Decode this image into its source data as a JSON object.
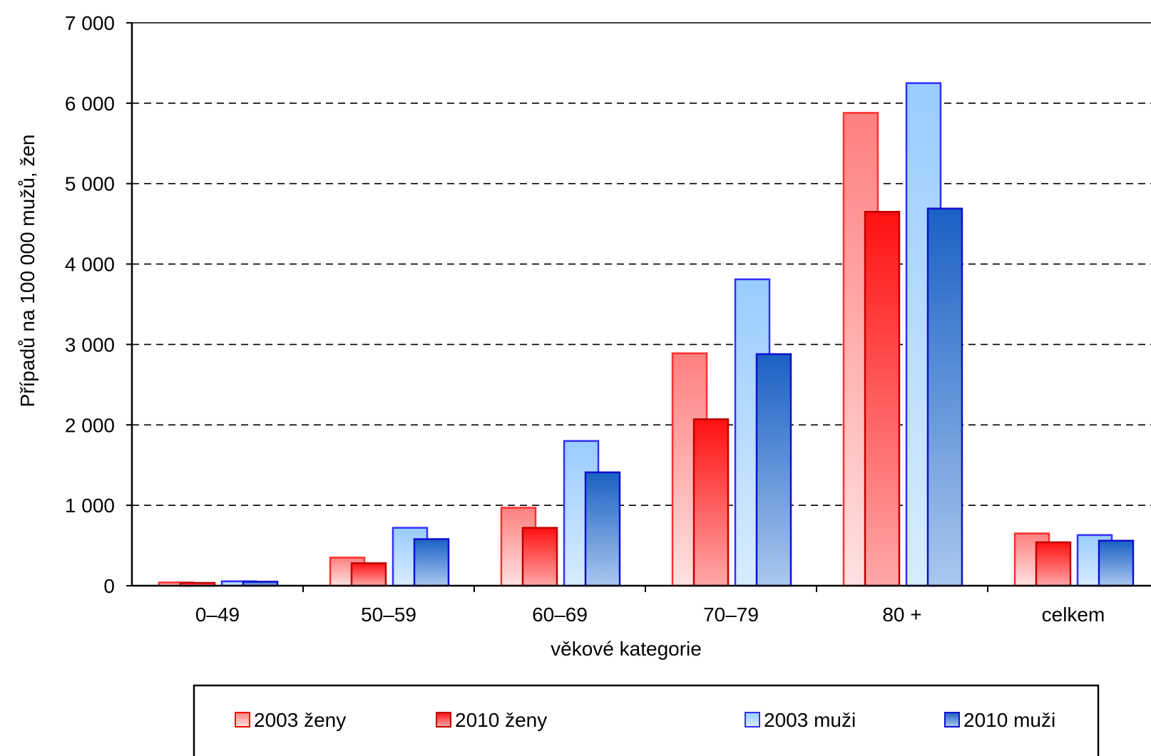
{
  "chart_data": {
    "type": "bar",
    "xlabel": "věkové kategorie",
    "ylabel": "Případů na 100 000 mužů, žen",
    "ylim": [
      0,
      7000
    ],
    "yticks": [
      0,
      1000,
      2000,
      3000,
      4000,
      5000,
      6000,
      7000
    ],
    "ytick_labels": [
      "0",
      "1 000",
      "2 000",
      "3 000",
      "4 000",
      "5 000",
      "6 000",
      "7 000"
    ],
    "grid": "horizontal dashed",
    "legend_position": "bottom",
    "categories": [
      "0–49",
      "50–59",
      "60–69",
      "70–79",
      "80 +",
      "celkem"
    ],
    "series": [
      {
        "name": "2003 ženy",
        "color": "#ff7f7f",
        "values": [
          40,
          350,
          970,
          2890,
          5880,
          650
        ]
      },
      {
        "name": "2010 ženy",
        "color": "#e8201f",
        "values": [
          35,
          280,
          720,
          2070,
          4650,
          540
        ]
      },
      {
        "name": "2003 muži",
        "color": "#99ccff",
        "values": [
          55,
          720,
          1800,
          3810,
          6250,
          630
        ]
      },
      {
        "name": "2010 muži",
        "color": "#1f68c8",
        "values": [
          50,
          580,
          1410,
          2880,
          4690,
          560
        ]
      }
    ]
  }
}
